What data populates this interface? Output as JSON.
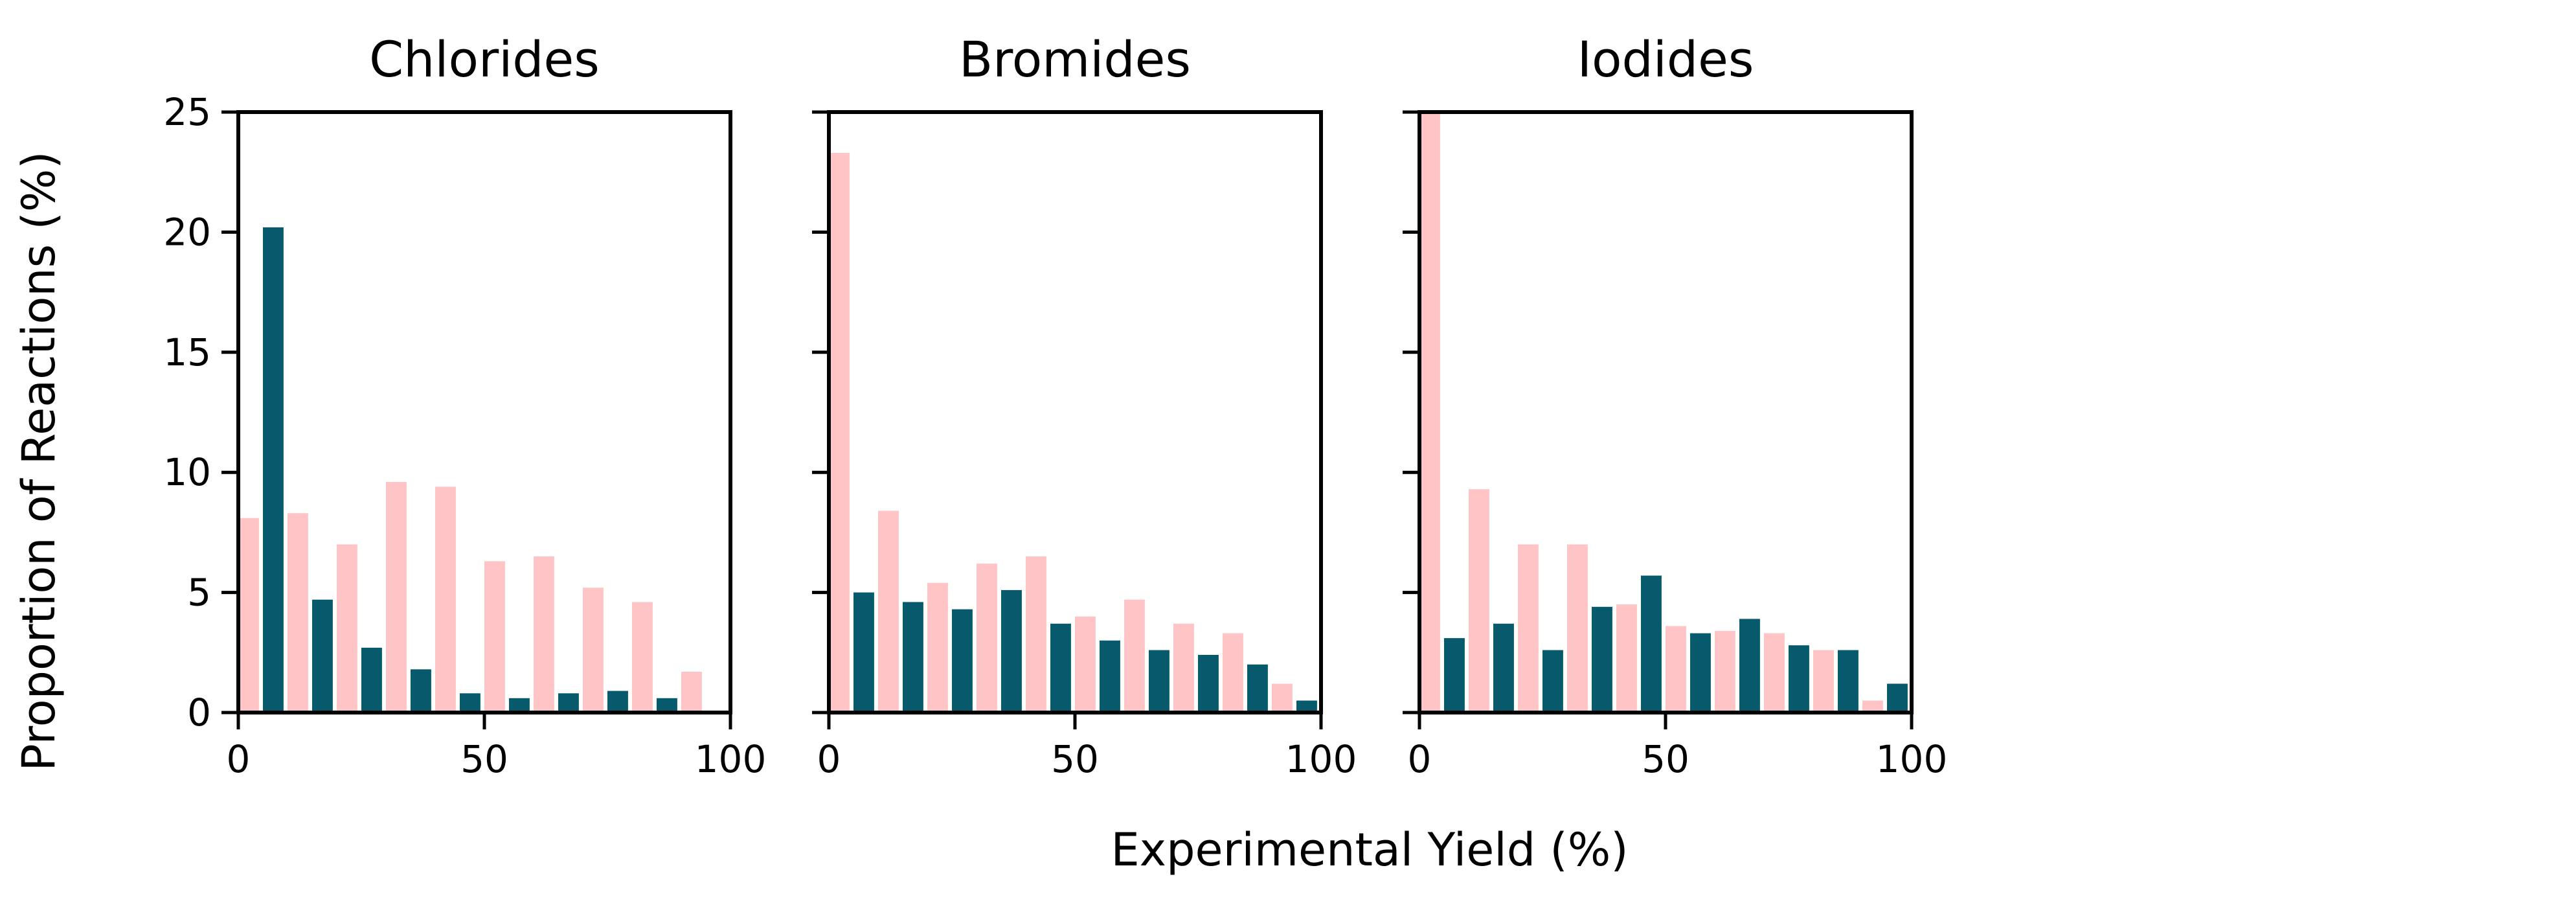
{
  "figure": {
    "xlabel": "Experimental Yield (%)",
    "ylabel": "Proportion of Reactions (%)"
  },
  "colors": {
    "series_a": "#ffc4c6",
    "series_b": "#065a6b"
  },
  "chart_data": [
    {
      "type": "bar",
      "title": "Chlorides",
      "xlim": [
        0,
        100
      ],
      "ylim": [
        0,
        25
      ],
      "x_ticks": [
        "0",
        "50",
        "100"
      ],
      "y_ticks": [
        "0",
        "5",
        "10",
        "15",
        "20",
        "25"
      ],
      "bin_centers": [
        5,
        15,
        25,
        35,
        45,
        55,
        65,
        75,
        85,
        95
      ],
      "series": [
        {
          "values": [
            8.1,
            8.3,
            7.0,
            9.6,
            9.4,
            6.3,
            6.5,
            5.2,
            4.6,
            1.7
          ]
        },
        {
          "values": [
            20.2,
            4.7,
            2.7,
            1.8,
            0.8,
            0.6,
            0.8,
            0.9,
            0.6,
            0.0
          ]
        }
      ]
    },
    {
      "type": "bar",
      "title": "Bromides",
      "xlim": [
        0,
        100
      ],
      "ylim": [
        0,
        25
      ],
      "x_ticks": [
        "0",
        "50",
        "100"
      ],
      "y_ticks": [],
      "bin_centers": [
        5,
        15,
        25,
        35,
        45,
        55,
        65,
        75,
        85,
        95
      ],
      "series": [
        {
          "values": [
            23.3,
            8.4,
            5.4,
            6.2,
            6.5,
            4.0,
            4.7,
            3.7,
            3.3,
            1.2
          ]
        },
        {
          "values": [
            5.0,
            4.6,
            4.3,
            5.1,
            3.7,
            3.0,
            2.6,
            2.4,
            2.0,
            0.5
          ]
        }
      ]
    },
    {
      "type": "bar",
      "title": "Iodides",
      "xlim": [
        0,
        100
      ],
      "ylim": [
        0,
        25
      ],
      "x_ticks": [
        "0",
        "50",
        "100"
      ],
      "y_ticks": [],
      "bin_centers": [
        5,
        15,
        25,
        35,
        45,
        55,
        65,
        75,
        85,
        95
      ],
      "series": [
        {
          "values": [
            25.5,
            9.3,
            7.0,
            7.0,
            4.5,
            3.6,
            3.4,
            3.3,
            2.6,
            0.5
          ]
        },
        {
          "values": [
            3.1,
            3.7,
            2.6,
            4.4,
            5.7,
            3.3,
            3.9,
            2.8,
            2.6,
            1.2
          ]
        }
      ]
    }
  ]
}
